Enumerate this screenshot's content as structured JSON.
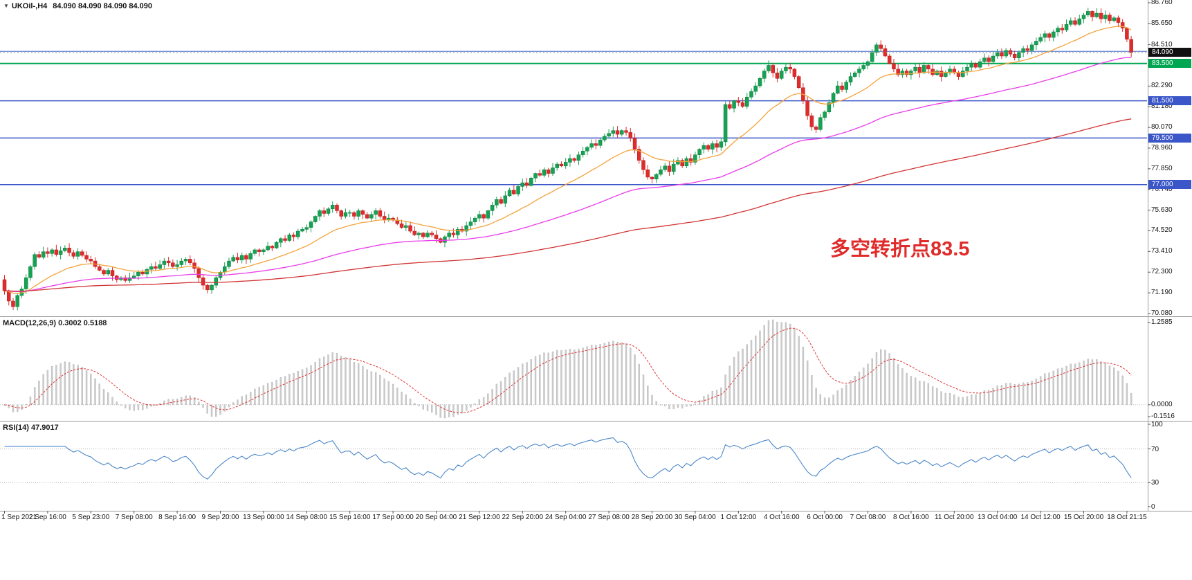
{
  "title_bar": {
    "dropdown_icon": "▼",
    "symbol": "UKOil-,H4",
    "quote_line": "84.090 84.090 84.090 84.090"
  },
  "chart_data": {
    "type": "candlestick",
    "symbol": "UKOil-",
    "timeframe": "H4",
    "current_price": {
      "value": 84.09,
      "label": "84.090",
      "tag_bg": "#111111"
    },
    "first_open": 71.9,
    "closes": [
      71.3,
      70.75,
      70.45,
      71.05,
      71.4,
      72,
      72.6,
      73.25,
      73.1,
      73.4,
      73.3,
      73.5,
      73.25,
      73.45,
      73.6,
      73.35,
      73.15,
      73.4,
      73.2,
      73,
      72.9,
      72.6,
      72.4,
      72.2,
      72.4,
      72.1,
      71.9,
      72,
      71.85,
      72,
      72.1,
      72.3,
      72.2,
      72.45,
      72.6,
      72.5,
      72.7,
      72.9,
      72.8,
      72.6,
      72.7,
      72.9,
      73,
      72.8,
      72.5,
      72,
      71.6,
      71.35,
      71.6,
      72,
      72.3,
      72.6,
      72.9,
      73.1,
      72.95,
      73.2,
      73,
      73.3,
      73.5,
      73.4,
      73.5,
      73.7,
      73.6,
      73.9,
      74.1,
      74,
      74.3,
      74.2,
      74.5,
      74.6,
      74.7,
      75,
      75.3,
      75.6,
      75.45,
      75.7,
      75.9,
      75.6,
      75.3,
      75.5,
      75.5,
      75.3,
      75.6,
      75.4,
      75.2,
      75.4,
      75.6,
      75.3,
      75.1,
      75.2,
      75.1,
      74.9,
      74.7,
      74.8,
      74.5,
      74.3,
      74.4,
      74.2,
      74.4,
      74.3,
      74.1,
      73.9,
      74.2,
      74.4,
      74.3,
      74.6,
      74.5,
      74.8,
      75,
      75.2,
      75.4,
      75.2,
      75.6,
      75.9,
      76.2,
      76,
      76.4,
      76.7,
      76.5,
      76.9,
      77.1,
      76.95,
      77.35,
      77.6,
      77.5,
      77.8,
      77.6,
      77.9,
      78.1,
      78,
      78.2,
      78.4,
      78.3,
      78.6,
      78.8,
      79,
      79.2,
      79.1,
      79.4,
      79.6,
      79.75,
      79.9,
      79.7,
      79.9,
      79.8,
      79.5,
      78.9,
      78.3,
      77.8,
      77.4,
      77.3,
      77.55,
      77.8,
      78,
      77.7,
      78.1,
      78.3,
      78,
      78.4,
      78.2,
      78.6,
      78.9,
      79.1,
      78.9,
      79.2,
      79,
      79.3,
      81.3,
      81.1,
      81.5,
      81.4,
      81.2,
      81.7,
      82,
      82.3,
      82.7,
      83.1,
      83.4,
      83,
      82.7,
      83.1,
      83.3,
      83.2,
      82.8,
      82.2,
      81.5,
      80.7,
      80.1,
      79.95,
      80.6,
      80.9,
      81.4,
      81.9,
      82.3,
      82.1,
      82.5,
      82.8,
      83,
      83.2,
      83.4,
      83.6,
      84.1,
      84.5,
      84.3,
      83.9,
      83.5,
      83.2,
      82.9,
      83.1,
      82.9,
      83.1,
      83.3,
      83,
      83.4,
      83.2,
      82.9,
      83.1,
      82.8,
      83,
      83.2,
      83,
      82.8,
      83.1,
      83.3,
      83.5,
      83.3,
      83.6,
      83.8,
      83.6,
      83.9,
      84.1,
      83.9,
      84.2,
      84,
      83.8,
      84.1,
      84.3,
      84.2,
      84.5,
      84.7,
      84.9,
      85.1,
      84.9,
      85.2,
      85.4,
      85.3,
      85.6,
      85.8,
      85.6,
      85.9,
      86.1,
      86.3,
      86,
      86.2,
      85.9,
      86.1,
      85.8,
      85.95,
      85.7,
      85.4,
      84.8,
      84.09
    ],
    "y_axis": {
      "min": 70.08,
      "max": 86.76,
      "tick_labels": [
        "86.760",
        "85.650",
        "84.510",
        "83.400",
        "82.290",
        "81.180",
        "80.070",
        "78.960",
        "77.850",
        "76.740",
        "75.630",
        "74.520",
        "73.410",
        "72.300",
        "71.190",
        "70.080"
      ]
    },
    "x_labels": [
      "1 Sep 2021",
      "2 Sep 16:00",
      "5 Sep 23:00",
      "7 Sep 08:00",
      "8 Sep 16:00",
      "9 Sep 20:00",
      "13 Sep 00:00",
      "14 Sep 08:00",
      "15 Sep 16:00",
      "17 Sep 00:00",
      "20 Sep 04:00",
      "21 Sep 12:00",
      "22 Sep 20:00",
      "24 Sep 04:00",
      "27 Sep 08:00",
      "28 Sep 20:00",
      "30 Sep 04:00",
      "1 Oct 12:00",
      "4 Oct 16:00",
      "6 Oct 00:00",
      "7 Oct 08:00",
      "8 Oct 16:00",
      "11 Oct 20:00",
      "13 Oct 04:00",
      "14 Oct 12:00",
      "15 Oct 20:00",
      "18 Oct 21:15"
    ],
    "hlines": [
      {
        "price": 84.15,
        "color": "#5b7fd0",
        "width": 1.2,
        "tag": null,
        "tag_bg": null
      },
      {
        "price": 83.5,
        "color": "#00a651",
        "width": 2,
        "tag": "83.500",
        "tag_bg": "#00a651"
      },
      {
        "price": 81.5,
        "color": "#3a56c8",
        "width": 1.5,
        "tag": "81.500",
        "tag_bg": "#3a56c8"
      },
      {
        "price": 79.5,
        "color": "#3a56c8",
        "width": 1.5,
        "tag": "79.500",
        "tag_bg": "#3a56c8"
      },
      {
        "price": 77.0,
        "color": "#3a56c8",
        "width": 1.5,
        "tag": "77.000",
        "tag_bg": "#3a56c8"
      }
    ],
    "mas": [
      {
        "period": 21,
        "color": "#f2a33c"
      },
      {
        "period": 75,
        "color": "#e93be9"
      },
      {
        "period": 200,
        "color": "#d23333"
      }
    ],
    "macd": {
      "label": "MACD(12,26,9) 0.3002 0.5188",
      "params": [
        12,
        26,
        9
      ],
      "current": [
        0.3002,
        0.5188
      ],
      "axis": [
        {
          "text": "1.2585",
          "value": 1.2585
        },
        {
          "text": "0.0000",
          "value": 0
        },
        {
          "text": "-0.1516",
          "value": -0.1516
        }
      ]
    },
    "rsi": {
      "label": "RSI(14) 47.9017",
      "period": 14,
      "current": 47.9017,
      "levels": [
        70,
        30
      ],
      "axis": [
        {
          "text": "100",
          "value": 100
        },
        {
          "text": "70",
          "value": 70
        },
        {
          "text": "30",
          "value": 30
        },
        {
          "text": "0",
          "value": 0
        }
      ]
    },
    "annotation": {
      "text": "多空转折点83.5",
      "color": "#e02b2b"
    },
    "colors": {
      "up": "#16a253",
      "up_edge": "#0c7a3c",
      "down": "#e12b2b",
      "down_edge": "#b01f1f",
      "hist": "#cccccc",
      "hist_edge": "#b5b5b5",
      "signal": "#e03030",
      "rsi": "#4a86c8",
      "separator": "#9a9a9a",
      "bg": "#ffffff"
    }
  }
}
